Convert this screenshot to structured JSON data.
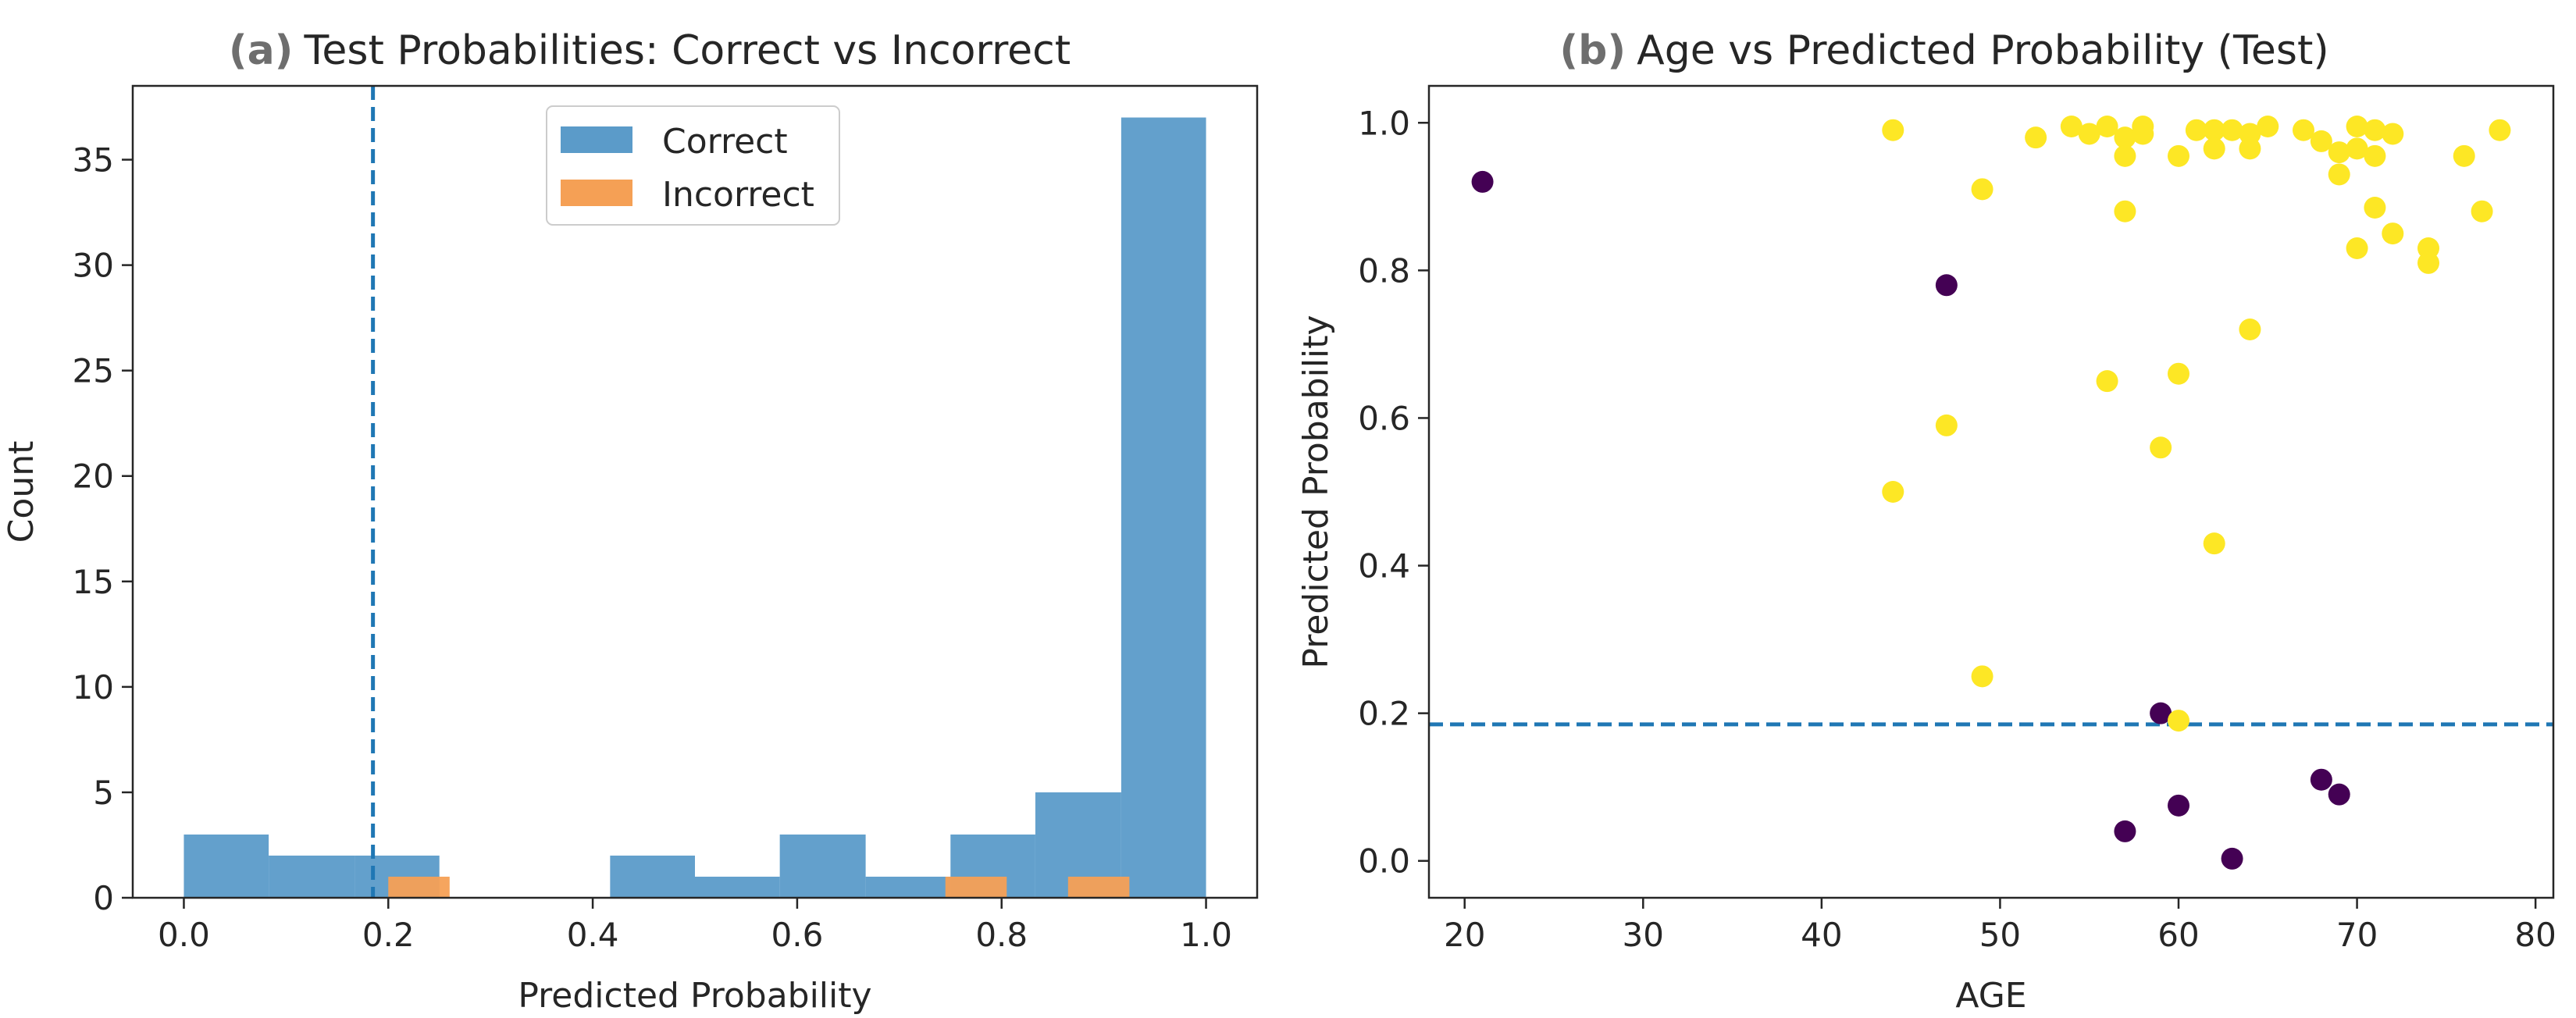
{
  "panels": {
    "a": {
      "title_prefix": "(a)",
      "title": "Test Probabilities: Correct vs Incorrect",
      "xlabel": "Predicted Probability",
      "ylabel": "Count",
      "x_ticks": [
        "0.0",
        "0.2",
        "0.4",
        "0.6",
        "0.8",
        "1.0"
      ],
      "y_ticks": [
        "0",
        "5",
        "10",
        "15",
        "20",
        "25",
        "30",
        "35"
      ],
      "legend": {
        "correct": "Correct",
        "incorrect": "Incorrect"
      }
    },
    "b": {
      "title_prefix": "(b)",
      "title": "Age vs Predicted Probability (Test)",
      "xlabel": "AGE",
      "ylabel": "Predicted Probability",
      "x_ticks": [
        "20",
        "30",
        "40",
        "50",
        "60",
        "70",
        "80"
      ],
      "y_ticks": [
        "0.0",
        "0.2",
        "0.4",
        "0.6",
        "0.8",
        "1.0"
      ]
    }
  },
  "colors": {
    "correct": "#5b9bc9",
    "incorrect": "#f5a055",
    "threshold": "#1f77b4",
    "class0": "#440154",
    "class1": "#fde725",
    "axis": "#262626"
  },
  "chart_data": [
    {
      "type": "bar",
      "subtype": "histogram",
      "title": "Test Probabilities: Correct vs Incorrect",
      "xlabel": "Predicted Probability",
      "ylabel": "Count",
      "xlim": [
        -0.05,
        1.05
      ],
      "ylim": [
        0,
        38.5
      ],
      "threshold_x": 0.185,
      "legend_position": "upper center",
      "series": [
        {
          "name": "Correct",
          "bins": [
            [
              0.0,
              0.083,
              3
            ],
            [
              0.083,
              0.167,
              2
            ],
            [
              0.167,
              0.25,
              2
            ],
            [
              0.25,
              0.333,
              0
            ],
            [
              0.333,
              0.417,
              0
            ],
            [
              0.417,
              0.5,
              2
            ],
            [
              0.5,
              0.583,
              1
            ],
            [
              0.583,
              0.667,
              3
            ],
            [
              0.667,
              0.75,
              1
            ],
            [
              0.75,
              0.833,
              3
            ],
            [
              0.833,
              0.917,
              5
            ],
            [
              0.917,
              1.0,
              37
            ]
          ]
        },
        {
          "name": "Incorrect",
          "bins": [
            [
              0.2,
              0.26,
              1
            ],
            [
              0.26,
              0.745,
              0
            ],
            [
              0.745,
              0.805,
              1
            ],
            [
              0.805,
              0.865,
              0
            ],
            [
              0.865,
              0.925,
              1
            ]
          ]
        }
      ]
    },
    {
      "type": "scatter",
      "title": "Age vs Predicted Probability (Test)",
      "xlabel": "AGE",
      "ylabel": "Predicted Probability",
      "xlim": [
        18,
        81
      ],
      "ylim": [
        -0.05,
        1.05
      ],
      "threshold_y": 0.185,
      "grid": false,
      "series": [
        {
          "class": 0,
          "points": [
            [
              21,
              0.92
            ],
            [
              47,
              0.78
            ],
            [
              59,
              0.2
            ],
            [
              57,
              0.04
            ],
            [
              60,
              0.075
            ],
            [
              63,
              0.003
            ],
            [
              68,
              0.11
            ],
            [
              69,
              0.09
            ]
          ]
        },
        {
          "class": 1,
          "points": [
            [
              44,
              0.99
            ],
            [
              44,
              0.5
            ],
            [
              47,
              0.59
            ],
            [
              49,
              0.91
            ],
            [
              49,
              0.25
            ],
            [
              52,
              0.98
            ],
            [
              54,
              0.995
            ],
            [
              55,
              0.985
            ],
            [
              56,
              0.995
            ],
            [
              56,
              0.65
            ],
            [
              57,
              0.98
            ],
            [
              57,
              0.955
            ],
            [
              57,
              0.88
            ],
            [
              58,
              0.995
            ],
            [
              58,
              0.985
            ],
            [
              59,
              0.56
            ],
            [
              60,
              0.955
            ],
            [
              60,
              0.66
            ],
            [
              60,
              0.19
            ],
            [
              61,
              0.99
            ],
            [
              62,
              0.99
            ],
            [
              62,
              0.965
            ],
            [
              62,
              0.43
            ],
            [
              63,
              0.99
            ],
            [
              64,
              0.985
            ],
            [
              64,
              0.965
            ],
            [
              64,
              0.72
            ],
            [
              65,
              0.995
            ],
            [
              67,
              0.99
            ],
            [
              68,
              0.975
            ],
            [
              69,
              0.96
            ],
            [
              69,
              0.93
            ],
            [
              70,
              0.995
            ],
            [
              70,
              0.965
            ],
            [
              70,
              0.83
            ],
            [
              71,
              0.99
            ],
            [
              71,
              0.955
            ],
            [
              71,
              0.885
            ],
            [
              72,
              0.985
            ],
            [
              72,
              0.85
            ],
            [
              74,
              0.83
            ],
            [
              74,
              0.81
            ],
            [
              76,
              0.955
            ],
            [
              77,
              0.88
            ],
            [
              78,
              0.99
            ]
          ]
        }
      ]
    }
  ]
}
